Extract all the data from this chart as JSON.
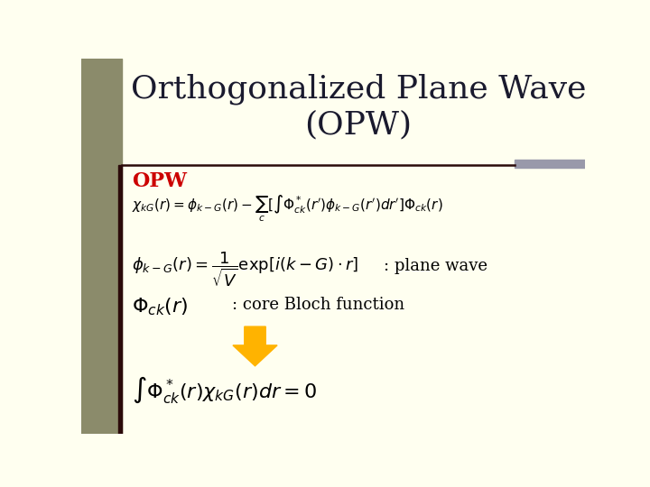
{
  "background_color": "#FFFFF0",
  "left_bar_color": "#8B8B6B",
  "title": "Orthogonalized Plane Wave\n(OPW)",
  "title_color": "#1a1a2e",
  "title_fontsize": 26,
  "opw_label": "OPW",
  "opw_color": "#CC0000",
  "opw_fontsize": 16,
  "eq1": "$\\chi_{kG}(r) = \\phi_{k-G}(r) - \\sum_c [\\int \\Phi_{ck}^*(r')\\phi_{k-G}(r')dr']\\Phi_{ck}(r)$",
  "eq2": "$\\phi_{k-G}(r) = \\dfrac{1}{\\sqrt{V}} \\exp[i(k-G)\\cdot r]$",
  "eq2_note": ": plane wave",
  "eq3": "$\\Phi_{ck}(r)$",
  "eq3_note": ": core Bloch function",
  "eq4": "$\\int \\Phi_{ck}^*(r)\\chi_{kG}(r)dr = 0$",
  "arrow_color": "#FFB300",
  "line_color": "#2b0a0a",
  "gray_bar_color": "#9999aa",
  "eq_color": "#000000",
  "note_color": "#000000"
}
